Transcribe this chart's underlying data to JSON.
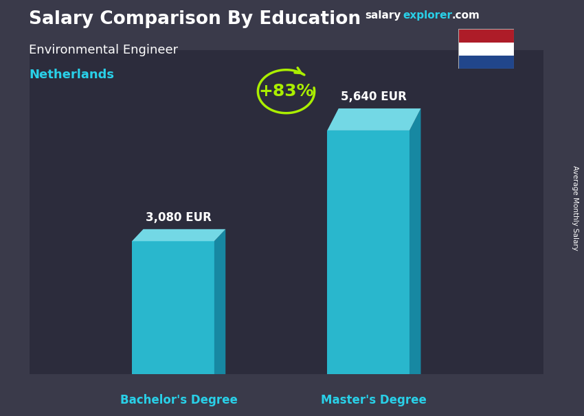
{
  "title_bold": "Salary Comparison By Education",
  "subtitle1": "Environmental Engineer",
  "subtitle2": "Netherlands",
  "site_salary": "salary",
  "site_explorer": "explorer",
  "site_com": ".com",
  "ylabel_rotated": "Average Monthly Salary",
  "categories": [
    "Bachelor's Degree",
    "Master's Degree"
  ],
  "values": [
    3080,
    5640
  ],
  "value_labels": [
    "3,080 EUR",
    "5,640 EUR"
  ],
  "pct_change": "+83%",
  "bar_front_color": "#29d0e8",
  "bar_top_color": "#7ae8f5",
  "bar_side_color": "#1499b5",
  "bg_dark": "#3a3a4a",
  "text_white": "#ffffff",
  "text_cyan": "#29d0e8",
  "text_green": "#aaee00",
  "flag_red": "#AE1C28",
  "flag_white": "#ffffff",
  "flag_blue": "#21468B",
  "ylim_max": 7500
}
